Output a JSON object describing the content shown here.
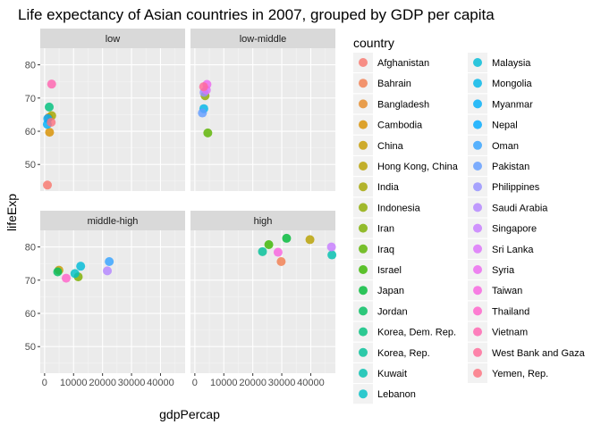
{
  "chart_data": {
    "type": "scatter",
    "title": "Life expectancy of Asian countries in 2007, grouped by GDP per capita",
    "xlabel": "gdpPercap",
    "ylabel": "lifeExp",
    "xlim": [
      -1500,
      48500
    ],
    "ylim": [
      42,
      85
    ],
    "x_ticks": [
      0,
      10000,
      20000,
      30000,
      40000
    ],
    "x_tick_labels": [
      "0",
      "10000",
      "20000",
      "30000",
      "40000"
    ],
    "y_ticks": [
      50,
      60,
      70,
      80
    ],
    "y_tick_labels": [
      "50",
      "60",
      "70",
      "80"
    ],
    "grid": true,
    "legend_title": "country",
    "legend_position": "right",
    "facets": [
      {
        "label": "low",
        "points": [
          {
            "country": "Afghanistan",
            "x": 975,
            "y": 43.8
          },
          {
            "country": "Bangladesh",
            "x": 1391,
            "y": 64.1
          },
          {
            "country": "Cambodia",
            "x": 1714,
            "y": 59.7
          },
          {
            "country": "India",
            "x": 2452,
            "y": 64.7
          },
          {
            "country": "Korea, Dem. Rep.",
            "x": 1593,
            "y": 67.3
          },
          {
            "country": "Myanmar",
            "x": 944,
            "y": 62.1
          },
          {
            "country": "Nepal",
            "x": 1091,
            "y": 63.8
          },
          {
            "country": "Vietnam",
            "x": 2442,
            "y": 74.2
          },
          {
            "country": "Yemen, Rep.",
            "x": 2281,
            "y": 62.7
          }
        ]
      },
      {
        "label": "low-middle",
        "points": [
          {
            "country": "Indonesia",
            "x": 3541,
            "y": 70.7
          },
          {
            "country": "Iraq",
            "x": 4471,
            "y": 59.5
          },
          {
            "country": "Mongolia",
            "x": 3096,
            "y": 66.8
          },
          {
            "country": "Pakistan",
            "x": 2606,
            "y": 65.5
          },
          {
            "country": "Philippines",
            "x": 3190,
            "y": 71.7
          },
          {
            "country": "Sri Lanka",
            "x": 3970,
            "y": 72.4
          },
          {
            "country": "Syria",
            "x": 4185,
            "y": 74.1
          },
          {
            "country": "West Bank and Gaza",
            "x": 3025,
            "y": 73.4
          }
        ]
      },
      {
        "label": "middle-high",
        "points": [
          {
            "country": "China",
            "x": 4959,
            "y": 73.0
          },
          {
            "country": "Iran",
            "x": 11606,
            "y": 71.0
          },
          {
            "country": "Jordan",
            "x": 4519,
            "y": 72.5
          },
          {
            "country": "Lebanon",
            "x": 10461,
            "y": 72.0
          },
          {
            "country": "Malaysia",
            "x": 12452,
            "y": 74.2
          },
          {
            "country": "Oman",
            "x": 22316,
            "y": 75.6
          },
          {
            "country": "Saudi Arabia",
            "x": 21655,
            "y": 72.8
          },
          {
            "country": "Thailand",
            "x": 7458,
            "y": 70.6
          }
        ]
      },
      {
        "label": "high",
        "points": [
          {
            "country": "Bahrain",
            "x": 29796,
            "y": 75.6
          },
          {
            "country": "Hong Kong, China",
            "x": 39725,
            "y": 82.2
          },
          {
            "country": "Israel",
            "x": 25523,
            "y": 80.7
          },
          {
            "country": "Japan",
            "x": 31656,
            "y": 82.6
          },
          {
            "country": "Korea, Rep.",
            "x": 23348,
            "y": 78.6
          },
          {
            "country": "Kuwait",
            "x": 47307,
            "y": 77.6
          },
          {
            "country": "Singapore",
            "x": 47143,
            "y": 80.0
          },
          {
            "country": "Taiwan",
            "x": 28718,
            "y": 78.4
          }
        ]
      }
    ],
    "legend": [
      {
        "name": "Afghanistan",
        "color": "#F8766D"
      },
      {
        "name": "Bahrain",
        "color": "#F17E4F"
      },
      {
        "name": "Bangladesh",
        "color": "#E58A28"
      },
      {
        "name": "Cambodia",
        "color": "#D89000"
      },
      {
        "name": "China",
        "color": "#C69B00"
      },
      {
        "name": "Hong Kong, China",
        "color": "#B7A000"
      },
      {
        "name": "India",
        "color": "#A3A500"
      },
      {
        "name": "Indonesia",
        "color": "#8DAB00"
      },
      {
        "name": "Iran",
        "color": "#7CAE00"
      },
      {
        "name": "Iraq",
        "color": "#5BB300"
      },
      {
        "name": "Israel",
        "color": "#39B600"
      },
      {
        "name": "Japan",
        "color": "#00BA38"
      },
      {
        "name": "Jordan",
        "color": "#00BD5F"
      },
      {
        "name": "Korea, Dem. Rep.",
        "color": "#00BF7D"
      },
      {
        "name": "Korea, Rep.",
        "color": "#00C097"
      },
      {
        "name": "Kuwait",
        "color": "#00C0AF"
      },
      {
        "name": "Lebanon",
        "color": "#00BFC4"
      },
      {
        "name": "Malaysia",
        "color": "#00BBD7"
      },
      {
        "name": "Mongolia",
        "color": "#00B6E8"
      },
      {
        "name": "Myanmar",
        "color": "#00AEF8"
      },
      {
        "name": "Nepal",
        "color": "#00A9FF"
      },
      {
        "name": "Oman",
        "color": "#35A2FF"
      },
      {
        "name": "Pakistan",
        "color": "#619CFF"
      },
      {
        "name": "Philippines",
        "color": "#9590FF"
      },
      {
        "name": "Saudi Arabia",
        "color": "#B385FF"
      },
      {
        "name": "Singapore",
        "color": "#C77CFF"
      },
      {
        "name": "Sri Lanka",
        "color": "#DC71FA"
      },
      {
        "name": "Syria",
        "color": "#EC69EF"
      },
      {
        "name": "Taiwan",
        "color": "#F863DF"
      },
      {
        "name": "Thailand",
        "color": "#FF61C9"
      },
      {
        "name": "Vietnam",
        "color": "#FF64B0"
      },
      {
        "name": "West Bank and Gaza",
        "color": "#FF6A98"
      },
      {
        "name": "Yemen, Rep.",
        "color": "#FC717F"
      }
    ]
  }
}
